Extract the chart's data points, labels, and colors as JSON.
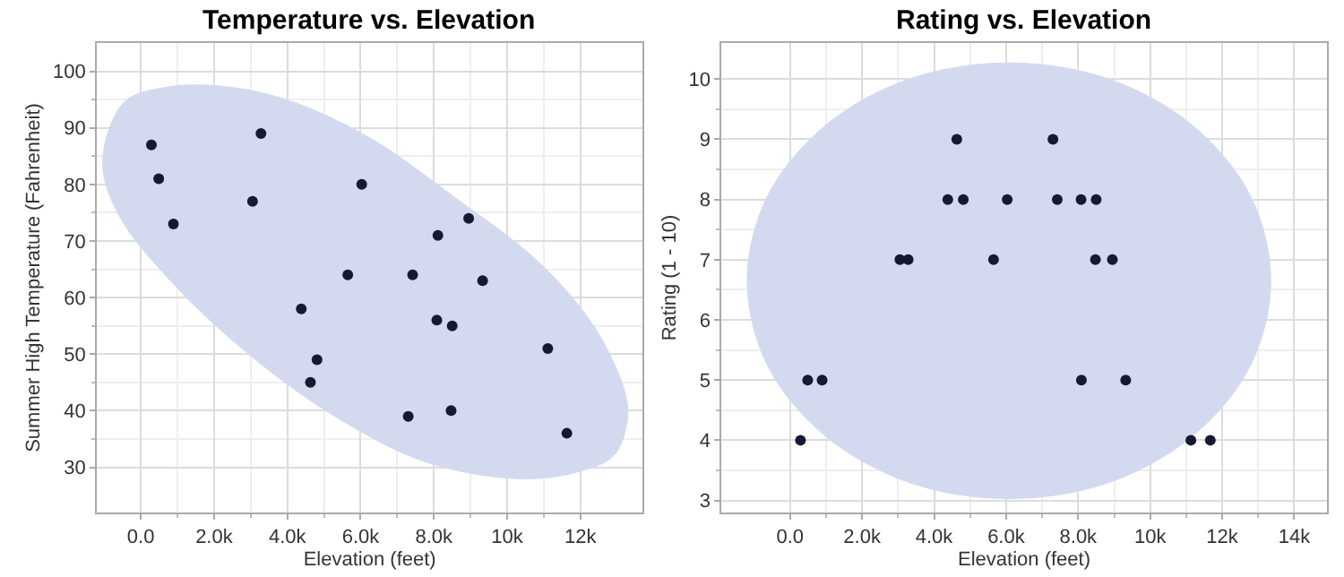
{
  "chart_data": [
    {
      "type": "scatter",
      "title": "Temperature vs. Elevation",
      "xlabel": "Elevation (feet)",
      "ylabel": "Summer High Temperature (Fahrenheit)",
      "xlim": [
        -1200,
        13700
      ],
      "ylim": [
        22,
        105
      ],
      "xticks": [
        {
          "value": 0,
          "label": "0.0"
        },
        {
          "value": 2000,
          "label": "2.0k"
        },
        {
          "value": 4000,
          "label": "4.0k"
        },
        {
          "value": 6000,
          "label": "6.0k"
        },
        {
          "value": 8000,
          "label": "8.0k"
        },
        {
          "value": 10000,
          "label": "10k"
        },
        {
          "value": 12000,
          "label": "12k"
        }
      ],
      "yticks": [
        30,
        40,
        50,
        60,
        70,
        80,
        90,
        100
      ],
      "grid": true,
      "series": [
        {
          "type": "area",
          "color": "#d3daef",
          "x": [
            -1040,
            -460,
            610,
            2140,
            3970,
            6260,
            8550,
            10840,
            12370,
            13210,
            13280,
            12900,
            11760,
            10230,
            7790,
            5500,
            3210,
            920,
            -610,
            -1040
          ],
          "values": [
            84.1,
            94.5,
            97.1,
            97.4,
            95.0,
            88.2,
            77.8,
            66.4,
            54.9,
            43.4,
            38.2,
            32.0,
            28.9,
            28.0,
            30.9,
            38.2,
            48.6,
            62.2,
            74.7,
            84.1
          ]
        },
        {
          "marker": "circle",
          "color": "#141a33",
          "x": [
            290,
            490,
            890,
            3280,
            3050,
            6030,
            4380,
            4810,
            4630,
            5650,
            7420,
            8110,
            8950,
            9330,
            8080,
            8500,
            7300,
            8470,
            11110,
            11630
          ],
          "values": [
            87,
            81,
            73,
            89,
            77,
            80,
            58,
            49,
            45,
            64,
            64,
            71,
            74,
            63,
            56,
            55,
            39,
            40,
            51,
            36
          ]
        }
      ]
    },
    {
      "type": "scatter",
      "title": "Rating vs. Elevation",
      "xlabel": "Elevation (feet)",
      "ylabel": "Rating (1 - 10)",
      "xlim": [
        -1900,
        14900
      ],
      "ylim": [
        2.8,
        10.6
      ],
      "xticks": [
        {
          "value": 0,
          "label": "0.0"
        },
        {
          "value": 2000,
          "label": "2.0k"
        },
        {
          "value": 4000,
          "label": "4.0k"
        },
        {
          "value": 6000,
          "label": "6.0k"
        },
        {
          "value": 8000,
          "label": "8.0k"
        },
        {
          "value": 10000,
          "label": "10k"
        },
        {
          "value": 12000,
          "label": "12k"
        },
        {
          "value": 14000,
          "label": "14k"
        }
      ],
      "yticks": [
        3,
        4,
        5,
        6,
        7,
        8,
        9,
        10
      ],
      "grid": true,
      "series": [
        {
          "type": "area",
          "color": "#d3daef",
          "x": [
            13350,
            12800,
            11220,
            8860,
            6080,
            3300,
            940,
            -640,
            -1190,
            -640,
            940,
            3300,
            6080,
            8860,
            11220,
            12800,
            13350
          ],
          "values": [
            6.65,
            8.04,
            9.21,
            10.0,
            10.27,
            10.0,
            9.21,
            8.04,
            6.65,
            5.26,
            4.09,
            3.3,
            3.03,
            3.3,
            4.09,
            5.26,
            6.65
          ]
        },
        {
          "marker": "circle",
          "color": "#141a33",
          "x": [
            290,
            490,
            890,
            3050,
            3280,
            4380,
            4630,
            4810,
            5650,
            6030,
            7300,
            7420,
            8080,
            8500,
            8090,
            8480,
            8950,
            9320,
            11130,
            11670
          ],
          "values": [
            4,
            5,
            5,
            7,
            7,
            8,
            9,
            8,
            7,
            8,
            9,
            8,
            8,
            8,
            5,
            7,
            7,
            5,
            4,
            4
          ]
        }
      ]
    }
  ]
}
